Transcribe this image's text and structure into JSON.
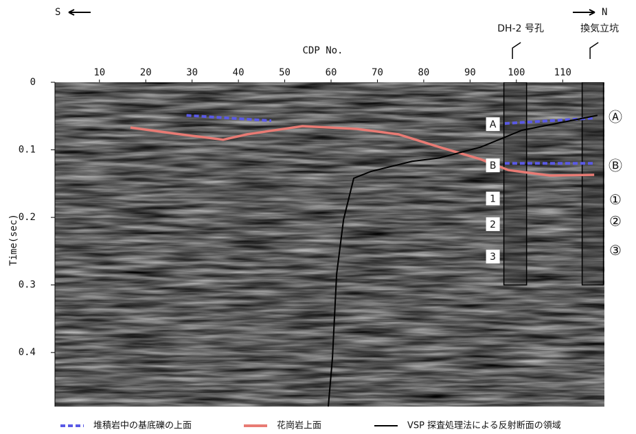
{
  "chart_data": {
    "type": "line",
    "x_label": "CDP No.",
    "y_label": "Time(sec)",
    "south_label": "S",
    "north_label": "N",
    "xlim": [
      0.4,
      119
    ],
    "xticks": [
      10,
      20,
      30,
      40,
      50,
      60,
      70,
      80,
      90,
      100,
      110
    ],
    "ylim": [
      0,
      0.48
    ],
    "yticks": [
      0,
      0.1,
      0.2,
      0.3,
      0.4
    ],
    "y_inverted": true,
    "boreholes": [
      {
        "label": "DH-2 号孔",
        "x": [
          97.3,
          102.2
        ],
        "depth": 0.3
      },
      {
        "label": "換気立坑",
        "x": [
          114.2,
          118.8
        ],
        "depth": 0.3
      }
    ],
    "box_labels": [
      {
        "text": "A",
        "y": 0.062
      },
      {
        "text": "B",
        "y": 0.123
      },
      {
        "text": "1",
        "y": 0.172
      },
      {
        "text": "2",
        "y": 0.21
      },
      {
        "text": "3",
        "y": 0.258
      }
    ],
    "circled_labels": [
      {
        "text": "Ⓐ",
        "y": 0.053
      },
      {
        "text": "Ⓑ",
        "y": 0.125
      },
      {
        "text": "①",
        "y": 0.175
      },
      {
        "text": "②",
        "y": 0.207
      },
      {
        "text": "③",
        "y": 0.25
      }
    ],
    "series": [
      {
        "name": "堆積岩中の基底礫の上面",
        "color": "#5a5ae6",
        "dashed": true,
        "x": [
          28.8,
          47.1,
          null,
          97.5,
          116.8,
          null,
          97.5,
          116.8
        ],
        "values": [
          0.049,
          0.057,
          null,
          0.061,
          0.053,
          null,
          0.12,
          0.12
        ]
      },
      {
        "name": "花崗岩上面",
        "color": "#e87b74",
        "dashed": false,
        "x": [
          16.7,
          26.3,
          36.7,
          41.9,
          53.8,
          65.6,
          74.5,
          83.4,
          92.3,
          98.3,
          107.2,
          116.8
        ],
        "values": [
          0.067,
          0.076,
          0.085,
          0.077,
          0.065,
          0.069,
          0.077,
          0.096,
          0.114,
          0.13,
          0.138,
          0.137
        ]
      },
      {
        "name": "VSP 探査処理法による反射断面の領域",
        "color": "#000000",
        "dashed": false,
        "x": [
          59.4,
          60.3,
          61.2,
          62.7,
          64.9,
          68.6,
          77.5,
          83.4,
          92.3,
          101.2,
          110.1,
          117.5
        ],
        "values": [
          0.48,
          0.408,
          0.284,
          0.203,
          0.142,
          0.132,
          0.117,
          0.112,
          0.096,
          0.071,
          0.059,
          0.049
        ]
      }
    ]
  }
}
